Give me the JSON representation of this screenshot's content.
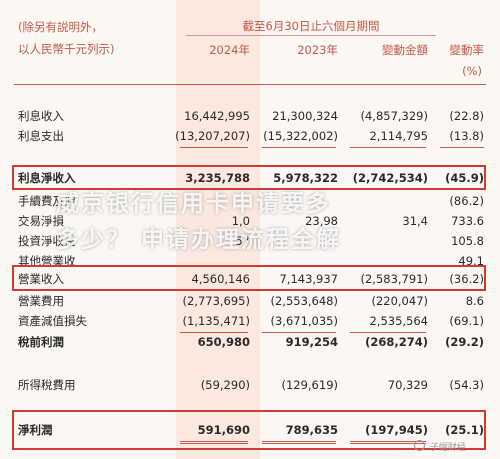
{
  "header": {
    "unit_line1": "(除另有説明外，",
    "unit_line2": "以人民幣千元列示)",
    "period": "截至6月30日止六個月期間",
    "col_2024": "2024年",
    "col_2023": "2023年",
    "col_change": "變動金額",
    "col_rate": "變動率",
    "rate_unit": "(%)"
  },
  "rows": [
    {
      "label": "利息收入",
      "v2024": "16,442,995",
      "v2023": "21,300,324",
      "change": "(4,857,329)",
      "rate": "(22.8)"
    },
    {
      "label": "利息支出",
      "v2024": "(13,207,207)",
      "v2023": "(15,322,002)",
      "change": "2,114,795",
      "rate": "(13.8)"
    },
    {
      "label": "利息淨收入",
      "v2024": "3,235,788",
      "v2023": "5,978,322",
      "change": "(2,742,534)",
      "rate": "(45.9)"
    },
    {
      "label": "手續費及佣",
      "v2024": "",
      "v2023": "",
      "change": "",
      "rate": "(86.2)"
    },
    {
      "label": "交易淨損",
      "v2024": "1,0",
      "v2023": "23,98",
      "change": "31,4",
      "rate": "733.6"
    },
    {
      "label": "投資淨收益",
      "v2024": "57",
      "v2023": "",
      "change": "",
      "rate": "105.8"
    },
    {
      "label": "其他營業收",
      "v2024": "",
      "v2023": "",
      "change": "",
      "rate": "49.1"
    },
    {
      "label": "營業收入",
      "v2024": "4,560,146",
      "v2023": "7,143,937",
      "change": "(2,583,791)",
      "rate": "(36.2)"
    },
    {
      "label": "營業費用",
      "v2024": "(2,773,695)",
      "v2023": "(2,553,648)",
      "change": "(220,047)",
      "rate": "8.6"
    },
    {
      "label": "資產減值損失",
      "v2024": "(1,135,471)",
      "v2023": "(3,671,035)",
      "change": "2,535,564",
      "rate": "(69.1)"
    },
    {
      "label": "稅前利潤",
      "v2024": "650,980",
      "v2023": "919,254",
      "change": "(268,274)",
      "rate": "(29.2)"
    },
    {
      "label": "所得稅費用",
      "v2024": "(59,290)",
      "v2023": "(129,619)",
      "change": "70,329",
      "rate": "(54.3)"
    },
    {
      "label": "淨利潤",
      "v2024": "591,690",
      "v2023": "789,635",
      "change": "(197,945)",
      "rate": "(25.1)"
    }
  ],
  "watermark": {
    "line1": "威京银行信用卡申请要多",
    "line2": "多少？ 申请办理流程全解"
  },
  "brand": "子帽财经",
  "colors": {
    "accent": "#c4584a",
    "box": "#d23a3a",
    "highlight": "#fbe8de"
  }
}
